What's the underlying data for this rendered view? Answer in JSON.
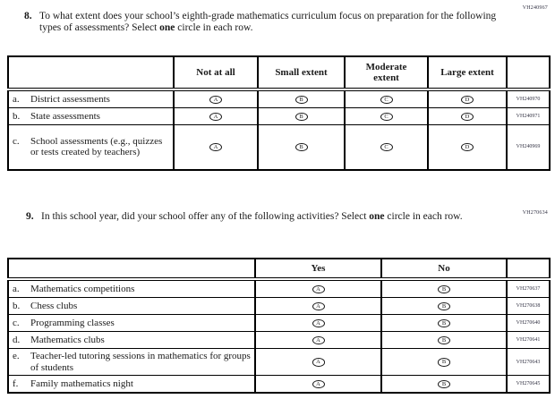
{
  "colors": {
    "background": "#ffffff",
    "text": "#1a1a1a",
    "border": "#000000",
    "code_text": "#333344"
  },
  "question8": {
    "code": "VH240967",
    "number": "8.",
    "text": "To what extent does your school’s eighth-grade mathematics curriculum focus on preparation for the following types of assessments? Select",
    "bold_word": "one",
    "text_after": "circle in each row.",
    "table": {
      "headers": [
        "Not at all",
        "Small extent",
        "Moderate\nextent",
        "Large extent"
      ],
      "bubble_letters": [
        "A",
        "B",
        "C",
        "D"
      ],
      "rows": [
        {
          "letter": "a.",
          "label": "District assessments",
          "code": "VH240970"
        },
        {
          "letter": "b.",
          "label": "State assessments",
          "code": "VH240971"
        },
        {
          "letter": "c.",
          "label": "School assessments (e.g., quizzes or tests created by teachers)",
          "code": "VH240969"
        }
      ]
    }
  },
  "question9": {
    "code": "VH270634",
    "number": "9.",
    "text": "In this school year, did your school offer any of the following activities? Select",
    "bold_word": "one",
    "text_after": "circle in each row.",
    "table": {
      "headers": [
        "Yes",
        "No"
      ],
      "bubble_letters": [
        "A",
        "B"
      ],
      "rows": [
        {
          "letter": "a.",
          "label": "Mathematics competitions",
          "code": "VH270637"
        },
        {
          "letter": "b.",
          "label": "Chess clubs",
          "code": "VH270638"
        },
        {
          "letter": "c.",
          "label": "Programming classes",
          "code": "VH270640"
        },
        {
          "letter": "d.",
          "label": "Mathematics clubs",
          "code": "VH270641"
        },
        {
          "letter": "e.",
          "label": "Teacher-led tutoring sessions in mathematics for groups of students",
          "code": "VH270643"
        },
        {
          "letter": "f.",
          "label": "Family mathematics night",
          "code": "VH270645"
        }
      ]
    }
  }
}
